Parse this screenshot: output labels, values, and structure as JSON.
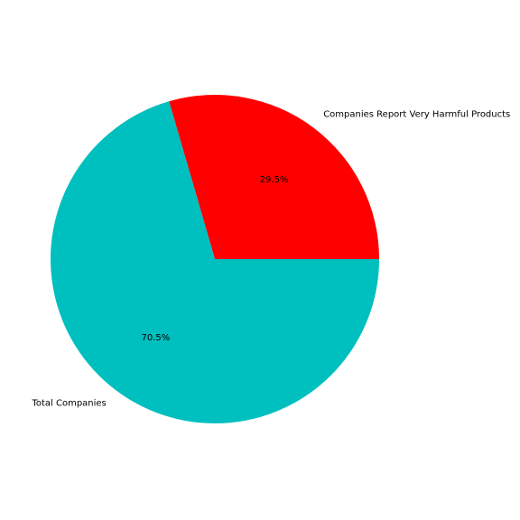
{
  "chart_data": {
    "type": "pie",
    "title": "",
    "start_angle_deg": 0,
    "direction": "counterclockwise",
    "slices": [
      {
        "label": "Companies Report Very Harmful Products",
        "value": 29.5,
        "pct_label": "29.5%",
        "color": "#ff0000"
      },
      {
        "label": "Total Companies",
        "value": 70.5,
        "pct_label": "70.5%",
        "color": "#00bfbf"
      }
    ]
  }
}
